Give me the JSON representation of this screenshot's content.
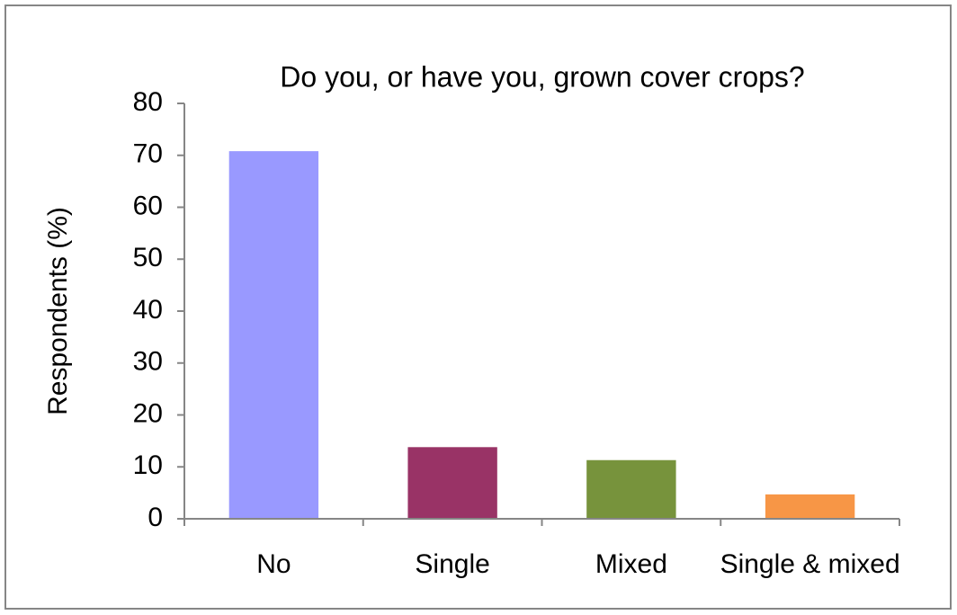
{
  "chart_data": {
    "type": "bar",
    "title": "Do you, or have you, grown cover crops?",
    "y_label": "Respondents (%)",
    "categories": [
      "No",
      "Single",
      "Mixed",
      "Single & mixed"
    ],
    "values": [
      70.8,
      13.8,
      11.3,
      4.7
    ],
    "colors": [
      "#9999ff",
      "#993366",
      "#77933c",
      "#f79646"
    ],
    "ylim": [
      0,
      80
    ],
    "yticks": [
      0,
      10,
      20,
      30,
      40,
      50,
      60,
      70,
      80
    ],
    "grid": false
  }
}
